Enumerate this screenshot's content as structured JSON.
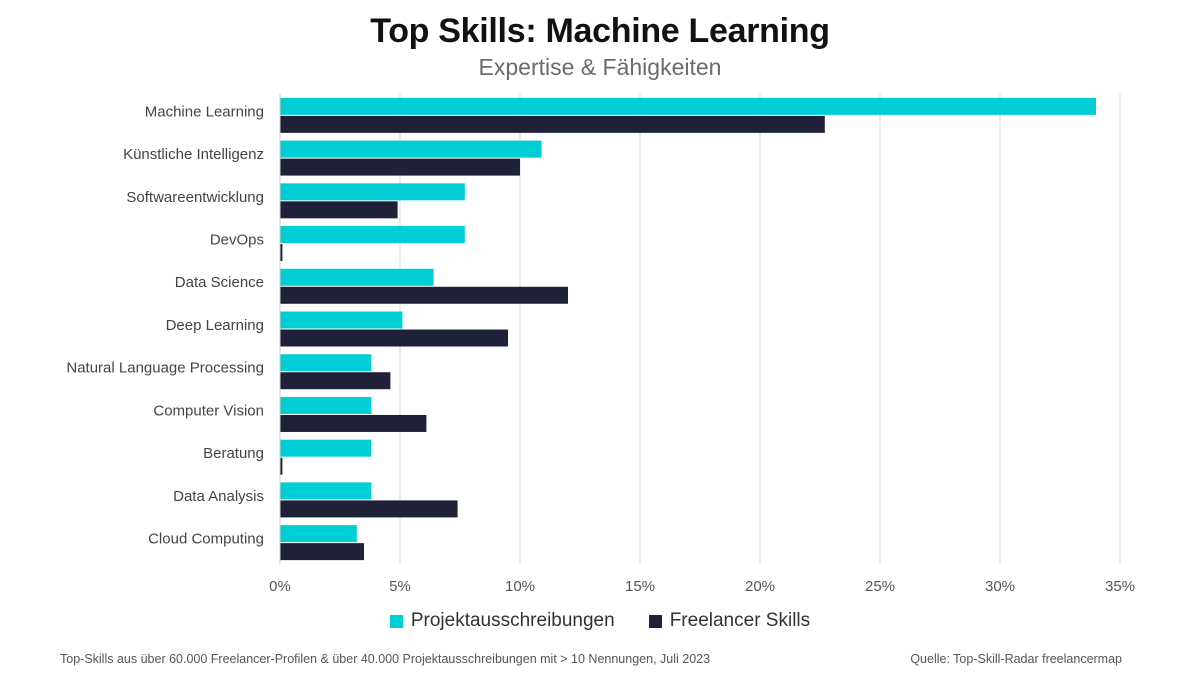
{
  "chart_data": {
    "type": "bar",
    "orientation": "horizontal",
    "title": "Top Skills: Machine Learning",
    "subtitle": "Expertise & Fähigkeiten",
    "categories": [
      "Machine Learning",
      "Künstliche Intelligenz",
      "Softwareentwicklung",
      "DevOps",
      "Data Science",
      "Deep Learning",
      "Natural Language Processing",
      "Computer Vision",
      "Beratung",
      "Data Analysis",
      "Cloud Computing"
    ],
    "series": [
      {
        "name": "Projektausschreibungen",
        "color": "#00CED6",
        "values": [
          34.0,
          10.9,
          7.7,
          7.7,
          6.4,
          5.1,
          3.8,
          3.8,
          3.8,
          3.8,
          3.2
        ]
      },
      {
        "name": "Freelancer Skills",
        "color": "#1F2138",
        "values": [
          22.7,
          10.0,
          4.9,
          0.1,
          12.0,
          9.5,
          4.6,
          6.1,
          0.1,
          7.4,
          3.5
        ]
      }
    ],
    "xlim": [
      0,
      35
    ],
    "xticks": [
      "0%",
      "5%",
      "10%",
      "15%",
      "20%",
      "25%",
      "30%",
      "35%"
    ],
    "xtick_values": [
      0,
      5,
      10,
      15,
      20,
      25,
      30,
      35
    ],
    "grid": true,
    "legend_position": "bottom-center"
  },
  "footnote": "Top-Skills aus über 60.000 Freelancer-Profilen & über 40.000 Projektausschreibungen mit > 10 Nennungen, Juli 2023",
  "source": "Quelle: Top-Skill-Radar freelancermap"
}
